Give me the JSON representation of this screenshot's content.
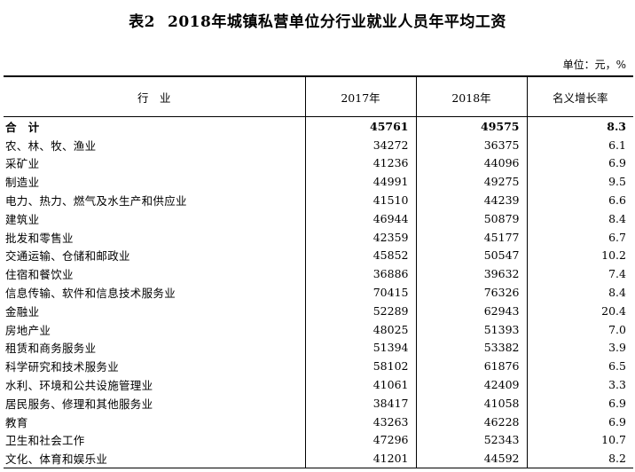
{
  "title": {
    "label": "表2",
    "text": "2018年城镇私营单位分行业就业人员年平均工资"
  },
  "unit": "单位：元，%",
  "headers": [
    "行　业",
    "2017年",
    "2018年",
    "名义增长率"
  ],
  "rows": [
    {
      "name": "合　计",
      "y2017": "45761",
      "y2018": "49575",
      "growth": "8.3"
    },
    {
      "name": "农、林、牧、渔业",
      "y2017": "34272",
      "y2018": "36375",
      "growth": "6.1"
    },
    {
      "name": "采矿业",
      "y2017": "41236",
      "y2018": "44096",
      "growth": "6.9"
    },
    {
      "name": "制造业",
      "y2017": "44991",
      "y2018": "49275",
      "growth": "9.5"
    },
    {
      "name": "电力、热力、燃气及水生产和供应业",
      "y2017": "41510",
      "y2018": "44239",
      "growth": "6.6"
    },
    {
      "name": "建筑业",
      "y2017": "46944",
      "y2018": "50879",
      "growth": "8.4"
    },
    {
      "name": "批发和零售业",
      "y2017": "42359",
      "y2018": "45177",
      "growth": "6.7"
    },
    {
      "name": "交通运输、仓储和邮政业",
      "y2017": "45852",
      "y2018": "50547",
      "growth": "10.2"
    },
    {
      "name": "住宿和餐饮业",
      "y2017": "36886",
      "y2018": "39632",
      "growth": "7.4"
    },
    {
      "name": "信息传输、软件和信息技术服务业",
      "y2017": "70415",
      "y2018": "76326",
      "growth": "8.4"
    },
    {
      "name": "金融业",
      "y2017": "52289",
      "y2018": "62943",
      "growth": "20.4"
    },
    {
      "name": "房地产业",
      "y2017": "48025",
      "y2018": "51393",
      "growth": "7.0"
    },
    {
      "name": "租赁和商务服务业",
      "y2017": "51394",
      "y2018": "53382",
      "growth": "3.9"
    },
    {
      "name": "科学研究和技术服务业",
      "y2017": "58102",
      "y2018": "61876",
      "growth": "6.5"
    },
    {
      "name": "水利、环境和公共设施管理业",
      "y2017": "41061",
      "y2018": "42409",
      "growth": "3.3"
    },
    {
      "name": "居民服务、修理和其他服务业",
      "y2017": "38417",
      "y2018": "41058",
      "growth": "6.9"
    },
    {
      "name": "教育",
      "y2017": "43263",
      "y2018": "46228",
      "growth": "6.9"
    },
    {
      "name": "卫生和社会工作",
      "y2017": "47296",
      "y2018": "52343",
      "growth": "10.7"
    },
    {
      "name": "文化、体育和娱乐业",
      "y2017": "41201",
      "y2018": "44592",
      "growth": "8.2"
    }
  ]
}
